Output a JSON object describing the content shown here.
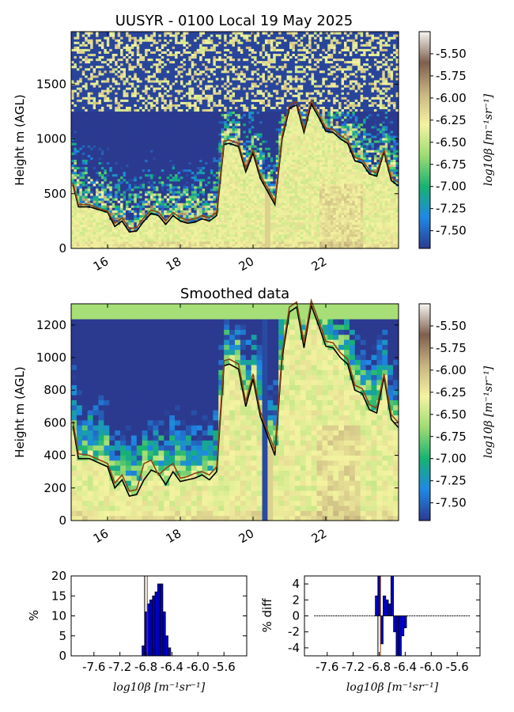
{
  "colors": {
    "scale": [
      "#2b3a8f",
      "#1e88e5",
      "#16b371",
      "#9ddc72",
      "#f4f3a0",
      "#c8b57f",
      "#7e5f4e",
      "#f7f5f2"
    ],
    "trace_black": "#000000",
    "trace_brown": "#8b4513",
    "hist_bar": "#0000cc"
  },
  "chart_data": [
    {
      "id": "raw",
      "type": "heatmap",
      "title": "UUSYR - 0100 Local 19 May 2025",
      "xlabel": "",
      "ylabel": "Height m (AGL)",
      "xlim": [
        15.0,
        24.0
      ],
      "ylim": [
        0,
        1980
      ],
      "xticks": [
        "16",
        "18",
        "20",
        "22"
      ],
      "yticks": [
        "0",
        "500",
        "1000",
        "1500"
      ],
      "colorbar": {
        "label": "log10β [m⁻¹sr⁻¹]",
        "range": [
          -7.7,
          -5.25
        ],
        "ticks": [
          "-5.50",
          "-5.75",
          "-6.00",
          "-6.25",
          "-6.50",
          "-6.75",
          "-7.00",
          "-7.25",
          "-7.50"
        ]
      },
      "lines": [
        {
          "color": "black",
          "x": [
            15.05,
            15.2,
            15.5,
            15.8,
            16.0,
            16.2,
            16.4,
            16.6,
            16.8,
            17.0,
            17.2,
            17.4,
            17.6,
            17.8,
            18.0,
            18.2,
            18.4,
            18.6,
            18.8,
            19.0,
            19.2,
            19.35,
            19.6,
            19.8,
            20.0,
            20.2,
            20.6,
            20.8,
            21.0,
            21.2,
            21.4,
            21.6,
            21.8,
            22.0,
            22.2,
            22.4,
            22.6,
            22.8,
            23.0,
            23.2,
            23.4,
            23.6,
            23.8,
            24.0
          ],
          "y": [
            580,
            380,
            380,
            350,
            330,
            200,
            250,
            150,
            160,
            250,
            320,
            300,
            220,
            300,
            250,
            230,
            240,
            270,
            250,
            300,
            950,
            960,
            930,
            700,
            870,
            640,
            400,
            1000,
            1280,
            1310,
            1060,
            1320,
            1200,
            1070,
            1060,
            1000,
            960,
            800,
            780,
            680,
            660,
            880,
            620,
            570
          ]
        },
        {
          "color": "brown",
          "x": [
            15.05,
            15.2,
            15.5,
            15.8,
            16.0,
            16.2,
            16.4,
            16.6,
            16.8,
            17.0,
            17.2,
            17.4,
            17.6,
            17.8,
            18.0,
            18.2,
            18.4,
            18.6,
            18.8,
            19.0,
            19.2,
            19.35,
            19.6,
            19.8,
            20.0,
            20.2,
            20.6,
            20.8,
            21.0,
            21.2,
            21.4,
            21.6,
            21.8,
            22.0,
            22.2,
            22.4,
            22.6,
            22.8,
            23.0,
            23.2,
            23.4,
            23.6,
            23.8,
            24.0
          ],
          "y": [
            600,
            400,
            400,
            360,
            340,
            230,
            280,
            180,
            190,
            280,
            350,
            330,
            250,
            330,
            280,
            260,
            270,
            300,
            280,
            330,
            980,
            990,
            960,
            730,
            900,
            670,
            430,
            1030,
            1310,
            1340,
            1090,
            1350,
            1230,
            1100,
            1090,
            1030,
            990,
            830,
            810,
            710,
            690,
            900,
            650,
            600
          ]
        }
      ]
    },
    {
      "id": "smoothed",
      "type": "heatmap",
      "title": "Smoothed data",
      "xlabel": "",
      "ylabel": "Height m (AGL)",
      "xlim": [
        15.0,
        24.0
      ],
      "ylim": [
        0,
        1330
      ],
      "xticks": [
        "16",
        "18",
        "20",
        "22"
      ],
      "yticks": [
        "0",
        "200",
        "400",
        "600",
        "800",
        "1000",
        "1200"
      ],
      "colorbar": {
        "label": "log10β [m⁻¹sr⁻¹]",
        "range": [
          -7.7,
          -5.25
        ],
        "ticks": [
          "-5.50",
          "-5.75",
          "-6.00",
          "-6.25",
          "-6.50",
          "-6.75",
          "-7.00",
          "-7.25",
          "-7.50"
        ]
      },
      "lines": [
        {
          "color": "black",
          "x": [
            15.05,
            15.2,
            15.5,
            15.8,
            16.0,
            16.2,
            16.4,
            16.6,
            16.8,
            17.0,
            17.2,
            17.4,
            17.6,
            17.8,
            18.0,
            18.2,
            18.4,
            18.6,
            18.8,
            19.0,
            19.2,
            19.35,
            19.6,
            19.8,
            20.0,
            20.2,
            20.6,
            20.8,
            21.0,
            21.2,
            21.4,
            21.6,
            21.8,
            22.0,
            22.2,
            22.4,
            22.6,
            22.8,
            23.0,
            23.2,
            23.4,
            23.6,
            23.8,
            24.0
          ],
          "y": [
            580,
            380,
            380,
            350,
            330,
            200,
            250,
            150,
            160,
            250,
            310,
            290,
            220,
            300,
            240,
            250,
            260,
            280,
            250,
            300,
            950,
            960,
            930,
            700,
            870,
            640,
            400,
            1000,
            1280,
            1310,
            1060,
            1320,
            1200,
            1070,
            1060,
            1000,
            960,
            800,
            780,
            680,
            660,
            880,
            620,
            570
          ]
        },
        {
          "color": "brown",
          "x": [
            15.05,
            15.2,
            15.5,
            15.8,
            16.0,
            16.2,
            16.4,
            16.6,
            16.8,
            17.0,
            17.2,
            17.4,
            17.6,
            17.8,
            18.0,
            18.2,
            18.4,
            18.6,
            18.8,
            19.0,
            19.2,
            19.35,
            19.6,
            19.8,
            20.0,
            20.2,
            20.6,
            20.8,
            21.0,
            21.2,
            21.4,
            21.6,
            21.8,
            22.0,
            22.2,
            22.4,
            22.6,
            22.8,
            23.0,
            23.2,
            23.4,
            23.6,
            23.8,
            24.0
          ],
          "y": [
            610,
            410,
            400,
            370,
            350,
            230,
            280,
            180,
            190,
            350,
            370,
            280,
            320,
            350,
            260,
            270,
            290,
            300,
            280,
            330,
            980,
            990,
            960,
            730,
            900,
            670,
            430,
            1030,
            1310,
            1340,
            1090,
            1350,
            1230,
            1100,
            1090,
            1030,
            990,
            830,
            810,
            710,
            690,
            900,
            650,
            600
          ]
        }
      ]
    },
    {
      "id": "hist",
      "type": "bar",
      "title": "",
      "xlabel": "log10β [m⁻¹sr⁻¹]",
      "ylabel": "%",
      "xlim": [
        -7.95,
        -5.25
      ],
      "ylim": [
        0,
        20
      ],
      "xticks": [
        "-7.6",
        "-7.2",
        "-6.8",
        "-6.4",
        "-6.0",
        "-5.6"
      ],
      "yticks": [
        "0",
        "5",
        "10",
        "15",
        "20"
      ],
      "markers": [
        -6.82,
        -6.78
      ],
      "bin_width": 0.04,
      "x": [
        -6.84,
        -6.8,
        -6.76,
        -6.72,
        -6.68,
        -6.64,
        -6.6,
        -6.56,
        -6.52,
        -6.48,
        -6.44
      ],
      "values": [
        2.5,
        11,
        13,
        14,
        15,
        16,
        18,
        18,
        11,
        5,
        2
      ]
    },
    {
      "id": "diff",
      "type": "bar",
      "title": "",
      "xlabel": "log10β [m⁻¹sr⁻¹]",
      "ylabel": "% diff",
      "xlim": [
        -7.95,
        -5.25
      ],
      "ylim": [
        -5,
        5
      ],
      "xticks": [
        "-7.6",
        "-7.2",
        "-6.8",
        "-6.4",
        "-6.0",
        "-5.6"
      ],
      "yticks": [
        "-4",
        "-2",
        "0",
        "2",
        "4"
      ],
      "markers": [
        -6.82,
        -6.78
      ],
      "bin_width": 0.04,
      "x": [
        -6.84,
        -6.8,
        -6.76,
        -6.72,
        -6.68,
        -6.64,
        -6.6,
        -6.56,
        -6.52,
        -6.48,
        -6.44,
        -6.4
      ],
      "values": [
        2.5,
        5,
        -3.5,
        2.5,
        2,
        1.5,
        5,
        -2,
        -5,
        -5,
        -2.5,
        -1.5
      ]
    }
  ]
}
